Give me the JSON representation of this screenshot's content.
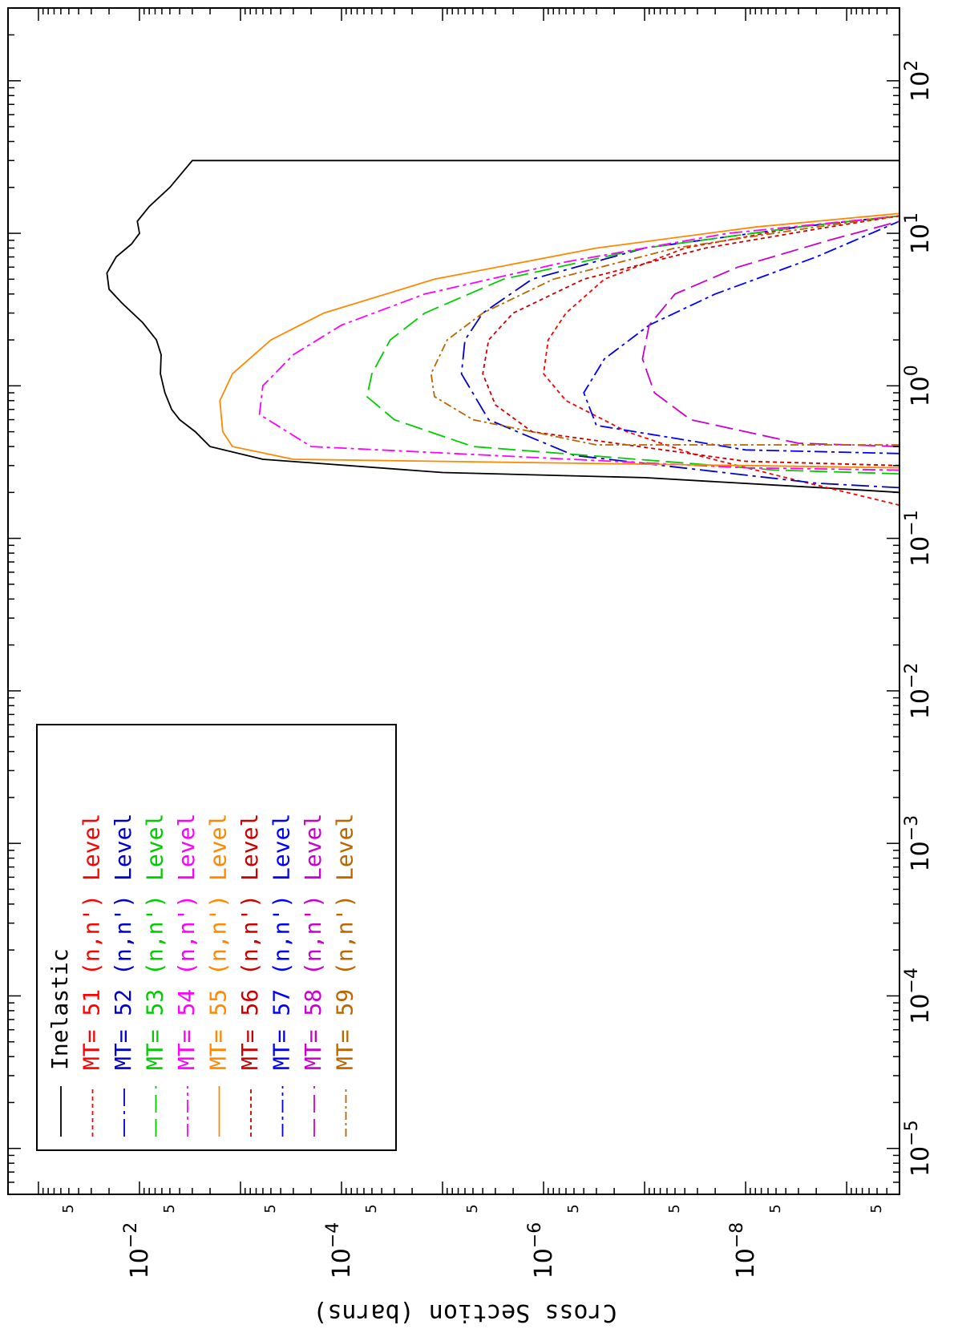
{
  "chart_data": {
    "type": "line",
    "orientation": "rotated-90-clockwise",
    "title": "",
    "xlabel": "",
    "ylabel": "Cross Section (barns)",
    "x_scale": "log",
    "y_scale": "log",
    "xlim": [
      5e-06,
      300
    ],
    "ylim": [
      3e-10,
      0.2
    ],
    "x_tick_labels": [
      "10^-5",
      "10^-4",
      "10^-3",
      "10^-2",
      "10^-1",
      "10^0",
      "10^1",
      "10^2"
    ],
    "y_tick_labels": [
      "10^-8",
      "10^-6",
      "10^-4",
      "10^-2"
    ],
    "y_minor_label": "5",
    "legend_position": "bottom-left",
    "series": [
      {
        "name": "Inelastic",
        "label": "Inelastic",
        "color": "#000000",
        "dash": "solid",
        "points": [
          [
            0.2,
            3e-10
          ],
          [
            0.21,
            1e-09
          ],
          [
            0.25,
            1e-07
          ],
          [
            0.27,
            1e-05
          ],
          [
            0.33,
            0.0006
          ],
          [
            0.4,
            0.002
          ],
          [
            0.5,
            0.0028
          ],
          [
            0.6,
            0.004
          ],
          [
            0.7,
            0.0048
          ],
          [
            0.9,
            0.0056
          ],
          [
            1.2,
            0.0062
          ],
          [
            1.6,
            0.0061
          ],
          [
            2.0,
            0.0068
          ],
          [
            2.6,
            0.0093
          ],
          [
            3.5,
            0.015
          ],
          [
            4.3,
            0.02
          ],
          [
            5.5,
            0.021
          ],
          [
            7.0,
            0.017
          ],
          [
            8.5,
            0.012
          ],
          [
            10,
            0.01
          ],
          [
            12,
            0.0105
          ],
          [
            15,
            0.008
          ],
          [
            20,
            0.005
          ],
          [
            30,
            0.003
          ],
          [
            30,
            3e-10
          ]
        ]
      },
      {
        "name": "MT= 51 (n,n') Level",
        "mt": "MT=",
        "num": "51",
        "reaction": "(n,n')",
        "level": "Level",
        "color": "#ff0000",
        "dash": "5,4",
        "points": [
          [
            0.165,
            3e-10
          ],
          [
            0.25,
            4e-09
          ],
          [
            0.35,
            3e-08
          ],
          [
            0.5,
            1.5e-07
          ],
          [
            0.8,
            6e-07
          ],
          [
            1.2,
            1e-06
          ],
          [
            2.0,
            9e-07
          ],
          [
            3.0,
            6e-07
          ],
          [
            5.0,
            2.5e-07
          ],
          [
            8.0,
            4e-08
          ],
          [
            11,
            3e-09
          ],
          [
            13,
            3e-10
          ]
        ]
      },
      {
        "name": "MT= 52 (n,n') Level",
        "mt": "MT=",
        "num": "52",
        "reaction": "(n,n')",
        "level": "Level",
        "color": "#0000cc",
        "dash": "22,6,4,6",
        "points": [
          [
            0.215,
            3e-10
          ],
          [
            0.23,
            2e-09
          ],
          [
            0.35,
            5e-07
          ],
          [
            0.6,
            3.5e-06
          ],
          [
            1.2,
            6.5e-06
          ],
          [
            2.0,
            6e-06
          ],
          [
            3.0,
            4e-06
          ],
          [
            5.0,
            1.3e-06
          ],
          [
            8.0,
            1e-07
          ],
          [
            11,
            3e-09
          ],
          [
            13,
            3e-10
          ]
        ]
      },
      {
        "name": "MT= 53 (n,n') Level",
        "mt": "MT=",
        "num": "53",
        "reaction": "(n,n')",
        "level": "Level",
        "color": "#00cc00",
        "dash": "22,8",
        "points": [
          [
            0.265,
            3e-10
          ],
          [
            0.28,
            5e-09
          ],
          [
            0.4,
            5e-06
          ],
          [
            0.6,
            3e-05
          ],
          [
            0.85,
            5.6e-05
          ],
          [
            1.2,
            5e-05
          ],
          [
            2.0,
            3.3e-05
          ],
          [
            3.0,
            1.5e-05
          ],
          [
            5.0,
            2.5e-06
          ],
          [
            8.0,
            1e-07
          ],
          [
            11,
            3e-09
          ],
          [
            13,
            3e-10
          ]
        ]
      },
      {
        "name": "MT= 54 (n,n') Level",
        "mt": "MT=",
        "num": "54",
        "reaction": "(n,n')",
        "level": "Level",
        "color": "#ff00ff",
        "dash": "16,5,4,5",
        "points": [
          [
            0.28,
            3e-10
          ],
          [
            0.29,
            1e-08
          ],
          [
            0.4,
            0.0002
          ],
          [
            0.65,
            0.00065
          ],
          [
            1.0,
            0.0006
          ],
          [
            1.6,
            0.0003
          ],
          [
            2.5,
            0.0001
          ],
          [
            4.0,
            1.5e-05
          ],
          [
            6.5,
            6e-07
          ],
          [
            10,
            1.5e-08
          ],
          [
            13,
            3e-10
          ]
        ]
      },
      {
        "name": "MT= 55 (n,n') Level",
        "mt": "MT=",
        "num": "55",
        "reaction": "(n,n')",
        "level": "Level",
        "color": "#ff8800",
        "dash": "solid",
        "points": [
          [
            0.29,
            3e-10
          ],
          [
            0.3,
            1e-08
          ],
          [
            0.33,
            0.0003
          ],
          [
            0.4,
            0.0012
          ],
          [
            0.5,
            0.0015
          ],
          [
            0.8,
            0.0016
          ],
          [
            1.2,
            0.0012
          ],
          [
            2.0,
            0.0005
          ],
          [
            3.0,
            0.00015
          ],
          [
            5.0,
            1.2e-05
          ],
          [
            8.0,
            3e-07
          ],
          [
            11,
            8e-09
          ],
          [
            13.5,
            3e-10
          ]
        ]
      },
      {
        "name": "MT= 56 (n,n') Level",
        "mt": "MT=",
        "num": "56",
        "reaction": "(n,n')",
        "level": "Level",
        "color": "#cc0000",
        "dash": "5,4",
        "points": [
          [
            0.3,
            3e-10
          ],
          [
            0.32,
            1e-08
          ],
          [
            0.5,
            1.3e-06
          ],
          [
            0.75,
            3e-06
          ],
          [
            1.2,
            4e-06
          ],
          [
            2.0,
            3.5e-06
          ],
          [
            3.0,
            2e-06
          ],
          [
            5.0,
            4e-07
          ],
          [
            8.0,
            2.5e-08
          ],
          [
            11,
            1.5e-09
          ],
          [
            13,
            3e-10
          ]
        ]
      },
      {
        "name": "MT= 57 (n,n') Level",
        "mt": "MT=",
        "num": "57",
        "reaction": "(n,n')",
        "level": "Level",
        "color": "#0000ff",
        "dash": "16,5,4,5",
        "points": [
          [
            0.36,
            3e-10
          ],
          [
            0.38,
            1e-08
          ],
          [
            0.55,
            3e-07
          ],
          [
            0.9,
            4e-07
          ],
          [
            1.5,
            2.5e-07
          ],
          [
            2.5,
            9e-08
          ],
          [
            4.0,
            2e-08
          ],
          [
            7.0,
            2e-09
          ],
          [
            12,
            3e-10
          ]
        ]
      },
      {
        "name": "MT= 58 (n,n') Level",
        "mt": "MT=",
        "num": "58",
        "reaction": "(n,n')",
        "level": "Level",
        "color": "#cc00cc",
        "dash": "22,8",
        "points": [
          [
            0.4,
            3e-10
          ],
          [
            0.42,
            3e-09
          ],
          [
            0.6,
            3.5e-08
          ],
          [
            0.9,
            8e-08
          ],
          [
            1.5,
            1.05e-07
          ],
          [
            2.5,
            9e-08
          ],
          [
            4.0,
            5e-08
          ],
          [
            6.0,
            1.2e-08
          ],
          [
            9.0,
            1.5e-09
          ],
          [
            12,
            3e-10
          ]
        ]
      },
      {
        "name": "MT= 59 (n,n') Level",
        "mt": "MT=",
        "num": "59",
        "reaction": "(n,n')",
        "level": "Level",
        "color": "#bb6600",
        "dash": "10,4,3,4",
        "points": [
          [
            0.41,
            3e-10
          ],
          [
            0.41,
            3e-07
          ],
          [
            0.6,
            5e-06
          ],
          [
            0.85,
            1.2e-05
          ],
          [
            1.2,
            1.3e-05
          ],
          [
            2.0,
            9e-06
          ],
          [
            3.0,
            4e-06
          ],
          [
            5.0,
            8e-07
          ],
          [
            8.0,
            5e-08
          ],
          [
            11,
            2e-09
          ],
          [
            13,
            3e-10
          ]
        ]
      }
    ]
  }
}
